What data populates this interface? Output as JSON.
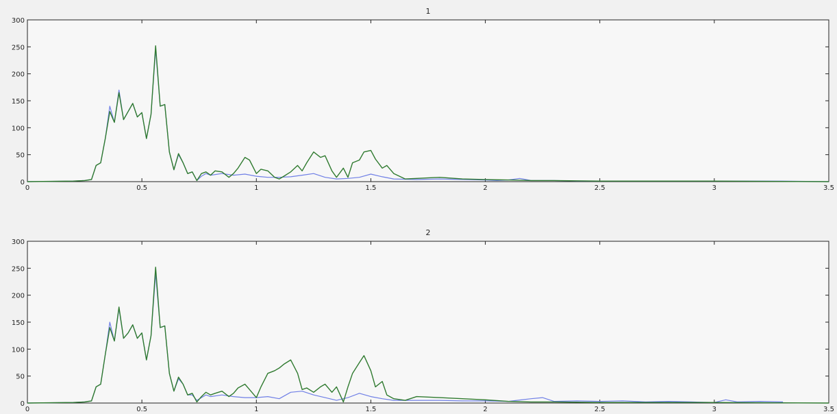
{
  "chart_data": [
    {
      "type": "line",
      "title": "1",
      "xlim": [
        0,
        3.5
      ],
      "ylim": [
        0,
        300
      ],
      "xticks": [
        0,
        0.5,
        1,
        1.5,
        2,
        2.5,
        3,
        3.5
      ],
      "xtick_labels": [
        "0",
        "0.5",
        "1",
        "1.5",
        "2",
        "2.5",
        "3",
        "3.5"
      ],
      "yticks": [
        0,
        50,
        100,
        150,
        200,
        250,
        300
      ],
      "ytick_labels": [
        "0",
        "50",
        "100",
        "150",
        "200",
        "250",
        "300"
      ],
      "grid": false,
      "series": [
        {
          "color": "#6f7fe6",
          "x": [
            0,
            0.2,
            0.25,
            0.28,
            0.3,
            0.32,
            0.34,
            0.36,
            0.38,
            0.4,
            0.42,
            0.44,
            0.46,
            0.48,
            0.5,
            0.52,
            0.54,
            0.56,
            0.58,
            0.6,
            0.62,
            0.64,
            0.66,
            0.68,
            0.7,
            0.72,
            0.74,
            0.76,
            0.78,
            0.8,
            0.85,
            0.9,
            0.95,
            1.0,
            1.05,
            1.1,
            1.15,
            1.2,
            1.25,
            1.3,
            1.35,
            1.4,
            1.45,
            1.5,
            1.55,
            1.6,
            1.7,
            1.8,
            1.9,
            2.0,
            2.05,
            2.1,
            2.15,
            2.2,
            2.25,
            2.3,
            2.4,
            2.5,
            2.6,
            2.7,
            2.8,
            2.9,
            3.0,
            3.1,
            3.2,
            3.3,
            3.5
          ],
          "y": [
            0,
            1,
            2,
            4,
            30,
            35,
            80,
            140,
            110,
            170,
            115,
            130,
            145,
            120,
            128,
            80,
            125,
            245,
            140,
            143,
            55,
            22,
            50,
            35,
            15,
            18,
            2,
            10,
            15,
            12,
            15,
            12,
            14,
            10,
            8,
            8,
            9,
            12,
            15,
            8,
            5,
            6,
            8,
            14,
            9,
            5,
            4,
            5,
            4,
            3,
            2,
            3,
            6,
            2,
            2,
            2,
            1,
            1,
            1,
            1,
            1,
            1,
            1,
            1,
            1,
            1,
            0
          ]
        },
        {
          "color": "#2f7a2f",
          "x": [
            0,
            0.2,
            0.25,
            0.28,
            0.3,
            0.32,
            0.34,
            0.36,
            0.38,
            0.4,
            0.42,
            0.44,
            0.46,
            0.48,
            0.5,
            0.52,
            0.54,
            0.56,
            0.58,
            0.6,
            0.62,
            0.64,
            0.66,
            0.68,
            0.7,
            0.72,
            0.74,
            0.76,
            0.78,
            0.8,
            0.82,
            0.85,
            0.88,
            0.9,
            0.92,
            0.95,
            0.97,
            1.0,
            1.02,
            1.05,
            1.08,
            1.1,
            1.12,
            1.15,
            1.18,
            1.2,
            1.22,
            1.25,
            1.28,
            1.3,
            1.33,
            1.35,
            1.38,
            1.4,
            1.42,
            1.45,
            1.47,
            1.5,
            1.52,
            1.55,
            1.57,
            1.6,
            1.65,
            1.7,
            1.8,
            1.9,
            2.0,
            2.1,
            2.2,
            2.3,
            2.5,
            3.0,
            3.5
          ],
          "y": [
            0,
            1,
            2,
            4,
            30,
            35,
            80,
            130,
            110,
            165,
            115,
            130,
            145,
            120,
            128,
            80,
            125,
            252,
            140,
            143,
            55,
            22,
            52,
            35,
            15,
            18,
            2,
            15,
            18,
            12,
            20,
            18,
            8,
            15,
            25,
            45,
            40,
            15,
            23,
            20,
            8,
            5,
            10,
            18,
            30,
            20,
            35,
            55,
            45,
            48,
            20,
            8,
            25,
            8,
            35,
            40,
            55,
            58,
            42,
            25,
            30,
            15,
            5,
            6,
            8,
            5,
            4,
            3,
            2,
            2,
            1,
            1,
            0
          ]
        }
      ]
    },
    {
      "type": "line",
      "title": "2",
      "xlim": [
        0,
        3.5
      ],
      "ylim": [
        0,
        300
      ],
      "xticks": [
        0,
        0.5,
        1,
        1.5,
        2,
        2.5,
        3,
        3.5
      ],
      "xtick_labels": [
        "0",
        "0.5",
        "1",
        "1.5",
        "2",
        "2.5",
        "3",
        "3.5"
      ],
      "yticks": [
        0,
        50,
        100,
        150,
        200,
        250,
        300
      ],
      "ytick_labels": [
        "0",
        "50",
        "100",
        "150",
        "200",
        "250",
        "300"
      ],
      "grid": false,
      "series": [
        {
          "color": "#6f7fe6",
          "x": [
            0,
            0.2,
            0.25,
            0.28,
            0.3,
            0.32,
            0.34,
            0.36,
            0.38,
            0.4,
            0.42,
            0.44,
            0.46,
            0.48,
            0.5,
            0.52,
            0.54,
            0.56,
            0.58,
            0.6,
            0.62,
            0.64,
            0.66,
            0.68,
            0.7,
            0.72,
            0.74,
            0.76,
            0.78,
            0.8,
            0.85,
            0.9,
            0.95,
            1.0,
            1.05,
            1.1,
            1.15,
            1.2,
            1.25,
            1.3,
            1.35,
            1.4,
            1.45,
            1.5,
            1.55,
            1.6,
            1.7,
            1.8,
            1.9,
            2.0,
            2.1,
            2.2,
            2.25,
            2.3,
            2.4,
            2.5,
            2.6,
            2.7,
            2.8,
            2.9,
            3.0,
            3.05,
            3.1,
            3.2,
            3.3
          ],
          "y": [
            0,
            1,
            2,
            4,
            30,
            35,
            90,
            150,
            115,
            175,
            120,
            130,
            145,
            120,
            130,
            80,
            125,
            240,
            140,
            143,
            55,
            22,
            45,
            35,
            15,
            15,
            5,
            10,
            15,
            12,
            15,
            12,
            10,
            10,
            12,
            8,
            20,
            22,
            15,
            10,
            5,
            10,
            18,
            12,
            8,
            5,
            5,
            5,
            4,
            4,
            3,
            8,
            10,
            3,
            4,
            3,
            4,
            2,
            3,
            2,
            1,
            6,
            2,
            3,
            2
          ]
        },
        {
          "color": "#2f7a2f",
          "x": [
            0,
            0.2,
            0.25,
            0.28,
            0.3,
            0.32,
            0.34,
            0.36,
            0.38,
            0.4,
            0.42,
            0.44,
            0.46,
            0.48,
            0.5,
            0.52,
            0.54,
            0.56,
            0.58,
            0.6,
            0.62,
            0.64,
            0.66,
            0.68,
            0.7,
            0.72,
            0.74,
            0.76,
            0.78,
            0.8,
            0.82,
            0.85,
            0.88,
            0.9,
            0.92,
            0.95,
            0.97,
            1.0,
            1.02,
            1.05,
            1.08,
            1.1,
            1.12,
            1.15,
            1.18,
            1.2,
            1.22,
            1.25,
            1.28,
            1.3,
            1.33,
            1.35,
            1.38,
            1.4,
            1.42,
            1.45,
            1.47,
            1.5,
            1.52,
            1.55,
            1.57,
            1.6,
            1.65,
            1.7,
            1.8,
            1.9,
            2.0,
            2.1,
            2.2,
            2.3,
            2.5,
            3.0,
            3.5
          ],
          "y": [
            0,
            1,
            2,
            4,
            30,
            35,
            90,
            140,
            115,
            178,
            120,
            130,
            145,
            120,
            130,
            80,
            125,
            252,
            140,
            143,
            55,
            22,
            48,
            35,
            15,
            18,
            2,
            12,
            20,
            15,
            18,
            22,
            12,
            18,
            28,
            35,
            25,
            10,
            30,
            55,
            60,
            65,
            72,
            80,
            55,
            25,
            28,
            20,
            30,
            35,
            20,
            30,
            2,
            30,
            55,
            75,
            88,
            60,
            30,
            40,
            15,
            8,
            5,
            12,
            10,
            8,
            6,
            3,
            2,
            2,
            1,
            1,
            0
          ]
        }
      ]
    }
  ]
}
